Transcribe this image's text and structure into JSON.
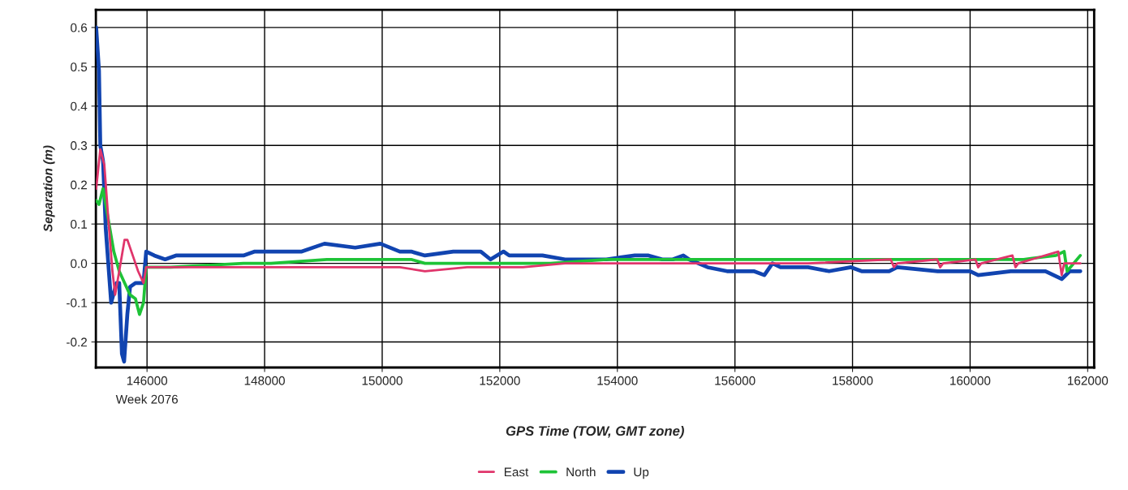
{
  "chart_data": {
    "type": "line",
    "xlabel": "GPS Time (TOW, GMT zone)",
    "ylabel": "Separation (m)",
    "annotations": [
      "Week 2076"
    ],
    "xlim": [
      145130,
      162110
    ],
    "ylim": [
      -0.265,
      0.645
    ],
    "xticks": [
      146000,
      148000,
      150000,
      152000,
      154000,
      156000,
      158000,
      160000,
      162000
    ],
    "yticks": [
      -0.2,
      -0.1,
      {
        "value": 0,
        "label": "0.0"
      },
      0.1,
      0.2,
      0.3,
      0.4,
      0.5,
      0.6
    ],
    "grid": true,
    "legend": "bottom",
    "marker": "none",
    "line_style": "solid",
    "series": [
      {
        "name": "East",
        "color": "#e0356b",
        "x": [
          145135,
          145205,
          145274,
          145343,
          145412,
          145458,
          145527,
          145618,
          145665,
          145757,
          145848,
          145940,
          145986,
          146400,
          147319,
          147640,
          148590,
          149541,
          149969,
          150300,
          150727,
          151443,
          152394,
          153110,
          154296,
          154999,
          155866,
          157244,
          158650,
          158705,
          158760,
          159440,
          159491,
          159540,
          160090,
          160138,
          160190,
          160720,
          160772,
          160820,
          161500,
          161558,
          161600,
          161875
        ],
        "values": [
          0.19,
          0.29,
          0.25,
          0.11,
          -0.02,
          -0.08,
          -0.02,
          0.06,
          0.06,
          0.02,
          -0.02,
          -0.05,
          -0.01,
          -0.01,
          -0.01,
          -0.01,
          -0.01,
          -0.01,
          -0.01,
          -0.01,
          -0.02,
          -0.01,
          -0.01,
          0.0,
          0.0,
          0.0,
          0.0,
          0.0,
          0.01,
          -0.01,
          0.0,
          0.01,
          -0.01,
          0.0,
          0.01,
          -0.01,
          0.0,
          0.02,
          -0.01,
          0.0,
          0.03,
          -0.03,
          0.0,
          0.0
        ]
      },
      {
        "name": "North",
        "color": "#1ec337",
        "x": [
          145135,
          145183,
          145252,
          145343,
          145435,
          145527,
          145618,
          145711,
          145803,
          145872,
          145940,
          145986,
          146400,
          147640,
          148108,
          149060,
          150010,
          150300,
          150492,
          150727,
          151209,
          151912,
          152862,
          153813,
          154764,
          154943,
          155866,
          157244,
          158154,
          158622,
          159311,
          160000,
          160910,
          161461,
          161600,
          161650,
          161875
        ],
        "values": [
          0.16,
          0.15,
          0.19,
          0.11,
          0.03,
          -0.02,
          -0.05,
          -0.08,
          -0.09,
          -0.13,
          -0.1,
          -0.01,
          -0.01,
          0.0,
          0.0,
          0.01,
          0.01,
          0.01,
          0.01,
          0.0,
          0.0,
          0.0,
          0.0,
          0.01,
          0.01,
          0.01,
          0.01,
          0.01,
          0.01,
          0.01,
          0.01,
          0.01,
          0.01,
          0.02,
          0.03,
          -0.02,
          0.02
        ]
      },
      {
        "name": "Up",
        "color": "#1144b0",
        "x": [
          145135,
          145183,
          145205,
          145252,
          145297,
          145390,
          145481,
          145527,
          145573,
          145610,
          145665,
          145711,
          145803,
          145894,
          145940,
          145986,
          146124,
          146308,
          146492,
          146858,
          147319,
          147640,
          147833,
          148108,
          148352,
          148632,
          149018,
          149541,
          149969,
          150300,
          150492,
          150727,
          151209,
          151677,
          151843,
          152063,
          152160,
          152725,
          153110,
          153813,
          154296,
          154530,
          154764,
          154943,
          155122,
          155219,
          155536,
          155866,
          156321,
          156500,
          156638,
          156776,
          157244,
          157602,
          157975,
          158154,
          158622,
          158760,
          159449,
          160000,
          160138,
          160690,
          161282,
          161558,
          161696,
          161875
        ],
        "values": [
          0.6,
          0.49,
          0.3,
          0.26,
          0.09,
          -0.1,
          -0.05,
          -0.05,
          -0.23,
          -0.25,
          -0.13,
          -0.06,
          -0.05,
          -0.05,
          -0.05,
          0.03,
          0.02,
          0.01,
          0.02,
          0.02,
          0.02,
          0.02,
          0.03,
          0.03,
          0.03,
          0.03,
          0.05,
          0.04,
          0.05,
          0.03,
          0.03,
          0.02,
          0.03,
          0.03,
          0.01,
          0.03,
          0.02,
          0.02,
          0.01,
          0.01,
          0.02,
          0.02,
          0.01,
          0.01,
          0.02,
          0.01,
          -0.01,
          -0.02,
          -0.02,
          -0.03,
          0.0,
          -0.01,
          -0.01,
          -0.02,
          -0.01,
          -0.02,
          -0.02,
          -0.01,
          -0.02,
          -0.02,
          -0.03,
          -0.02,
          -0.02,
          -0.04,
          -0.02,
          -0.02
        ]
      }
    ]
  }
}
